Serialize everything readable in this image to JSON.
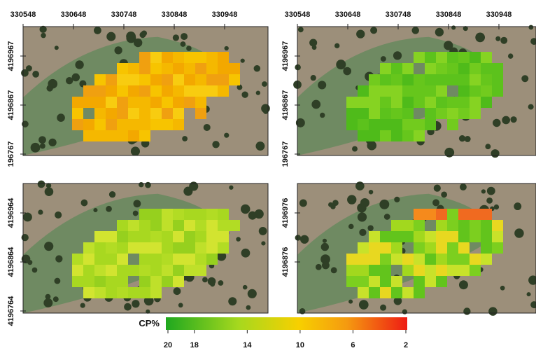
{
  "panels": [
    {
      "x_ticks": [
        "330548",
        "330648",
        "330748",
        "330848",
        "330948"
      ],
      "y_ticks": [
        "4196967",
        "4196867",
        "196767"
      ]
    },
    {
      "x_ticks": [
        "330548",
        "330648",
        "330748",
        "330848",
        "330948"
      ],
      "y_ticks": [
        "4196967",
        "4196867",
        "196767"
      ]
    },
    {
      "y_ticks": [
        "4196964",
        "4196864",
        "4196764"
      ]
    },
    {
      "y_ticks": [
        "4196976",
        "4196876"
      ]
    }
  ],
  "colorbar": {
    "title": "CP%",
    "labels": [
      20,
      18,
      14,
      10,
      6,
      2
    ]
  }
}
